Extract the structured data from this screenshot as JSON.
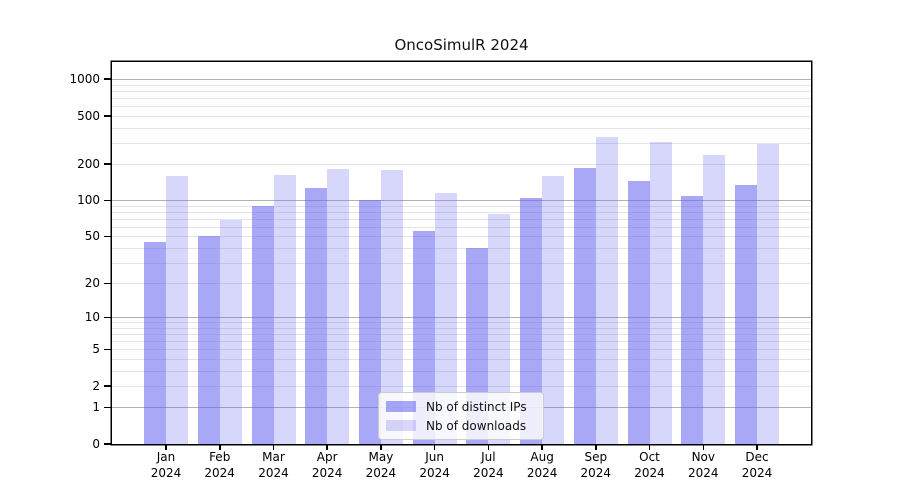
{
  "chart_data": {
    "type": "bar",
    "title": "OncoSimulR 2024",
    "categories": [
      "Jan",
      "Feb",
      "Mar",
      "Apr",
      "May",
      "Jun",
      "Jul",
      "Aug",
      "Sep",
      "Oct",
      "Nov",
      "Dec"
    ],
    "category_year": "2024",
    "series": [
      {
        "name": "Nb of distinct IPs",
        "color": "#6060ef",
        "alpha": 0.55,
        "values": [
          45,
          50,
          90,
          127,
          100,
          56,
          40,
          104,
          184,
          145,
          108,
          133
        ]
      },
      {
        "name": "Nb of downloads",
        "color": "#6060ef",
        "alpha": 0.25,
        "values": [
          158,
          69,
          162,
          183,
          178,
          114,
          77,
          158,
          336,
          304,
          238,
          295
        ]
      }
    ],
    "y_ticks": [
      0,
      1,
      2,
      5,
      10,
      20,
      50,
      100,
      200,
      500,
      1000
    ],
    "major_gridlines": [
      1,
      10,
      100,
      1000
    ],
    "scale": "log1p",
    "ylim": [
      0,
      1385
    ],
    "grid": true,
    "legend_position": "bottom-center"
  }
}
